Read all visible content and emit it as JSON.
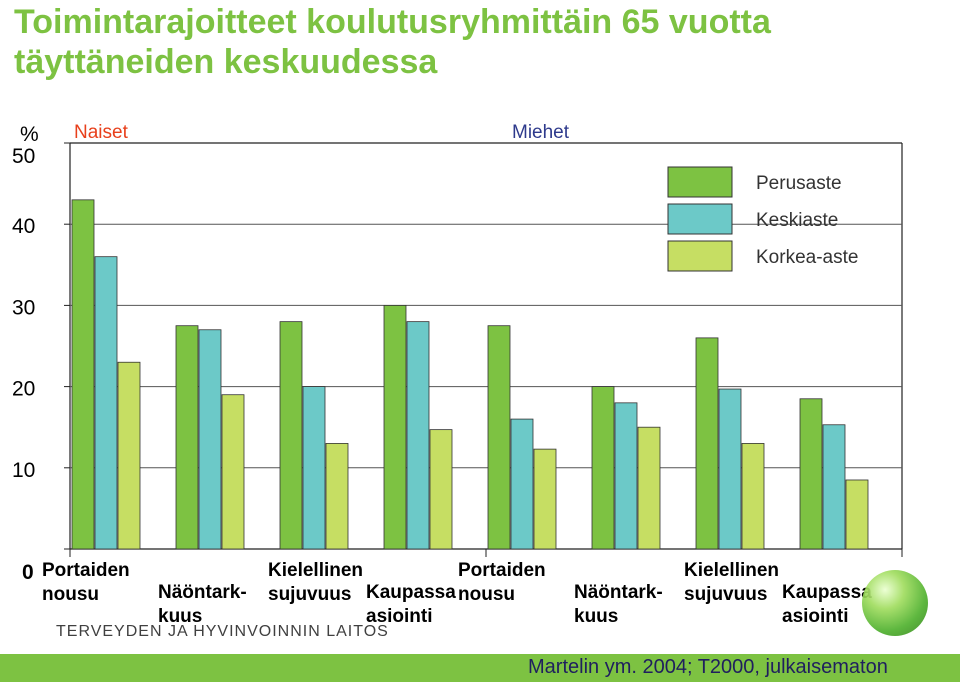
{
  "title": "Toimintarajoitteet koulutusryhmittäin 65 vuotta täyttäneiden keskuudessa",
  "colors": {
    "title": "#7dc242",
    "naiset": "#e8401c",
    "miehet": "#2e3a8c"
  },
  "logo_text": "TERVEYDEN JA HYVINVOINNIN LAITOS",
  "footer": "Martelin ym. 2004; T2000, julkaisematon",
  "chart_data": {
    "type": "bar",
    "ylabel": "%",
    "ylim": [
      0,
      50
    ],
    "yticks": [
      "0",
      "10",
      "20",
      "30",
      "40",
      "50"
    ],
    "grid": true,
    "legend_position": "top-right",
    "series": [
      {
        "name": "Perusaste",
        "color": "#7dc242"
      },
      {
        "name": "Keskiaste",
        "color": "#6cc9c8"
      },
      {
        "name": "Korkea-aste",
        "color": "#c6de63"
      }
    ],
    "groups": [
      {
        "label": "Naiset",
        "categories": [
          {
            "label": [
              "Portaiden",
              "nousu"
            ],
            "values": [
              43,
              36,
              23
            ]
          },
          {
            "label": [
              "Näöntark-",
              "kuus"
            ],
            "values": [
              27.5,
              27,
              19
            ]
          },
          {
            "label": [
              "Kielellinen",
              "sujuvuus"
            ],
            "values": [
              28,
              20,
              13
            ]
          },
          {
            "label": [
              "Kaupassa",
              "asiointi"
            ],
            "values": [
              30,
              28,
              14.7
            ]
          }
        ]
      },
      {
        "label": "Miehet",
        "categories": [
          {
            "label": [
              "Portaiden",
              "nousu"
            ],
            "values": [
              27.5,
              16,
              12.3
            ]
          },
          {
            "label": [
              "Näöntark-",
              "kuus"
            ],
            "values": [
              20,
              18,
              15
            ]
          },
          {
            "label": [
              "Kielellinen",
              "sujuvuus"
            ],
            "values": [
              26,
              19.7,
              13
            ]
          },
          {
            "label": [
              "Kaupassa",
              "asiointi"
            ],
            "values": [
              18.5,
              15.3,
              8.5
            ]
          }
        ]
      }
    ]
  }
}
